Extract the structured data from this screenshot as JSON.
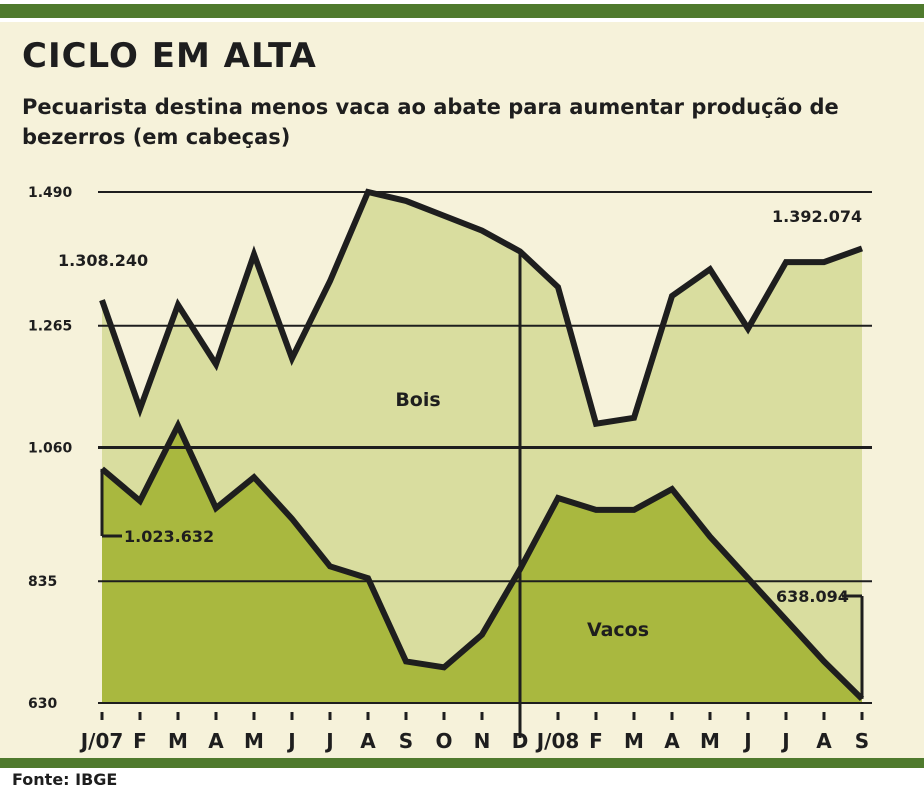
{
  "title": "CICLO EM ALTA",
  "subtitle": "Pecuarista destina menos vaca ao abate para aumentar produção de bezerros (em cabeças)",
  "source": "Fonte: IBGE",
  "colors": {
    "bar": "#4f7a2d",
    "panel": "#f6f2da",
    "area_upper": "#d9dd9f",
    "area_lower": "#a9b83f",
    "line": "#1e1e1e"
  },
  "chart_data": {
    "type": "area",
    "categories": [
      "J/07",
      "F",
      "M",
      "A",
      "M",
      "J",
      "J",
      "A",
      "S",
      "O",
      "N",
      "D",
      "J/08",
      "F",
      "M",
      "A",
      "M",
      "J",
      "J",
      "A",
      "S"
    ],
    "ylim": [
      630,
      1490
    ],
    "yticks": [
      "1.490",
      "1.265",
      "1.060",
      "835",
      "630"
    ],
    "ytick_values": [
      1490,
      1265,
      1060,
      835,
      630
    ],
    "grid": true,
    "divider_after_category_index": 11,
    "series": [
      {
        "name": "Bois",
        "values": [
          1308,
          1125,
          1300,
          1200,
          1385,
          1210,
          1340,
          1490,
          1475,
          1450,
          1425,
          1390,
          1330,
          1100,
          1110,
          1315,
          1360,
          1260,
          1372,
          1372,
          1395
        ]
      },
      {
        "name": "Vacos",
        "values": [
          1024,
          970,
          1097,
          958,
          1010,
          940,
          860,
          840,
          700,
          690,
          745,
          855,
          975,
          955,
          955,
          990,
          910,
          840,
          770,
          700,
          637
        ]
      }
    ],
    "annotations": [
      {
        "text": "1.308.240",
        "series": 0,
        "index": 0
      },
      {
        "text": "1.392.074",
        "series": 0,
        "index": 20
      },
      {
        "text": "1.023.632",
        "series": 1,
        "index": 0
      },
      {
        "text": "638.094",
        "series": 1,
        "index": 20
      }
    ]
  }
}
